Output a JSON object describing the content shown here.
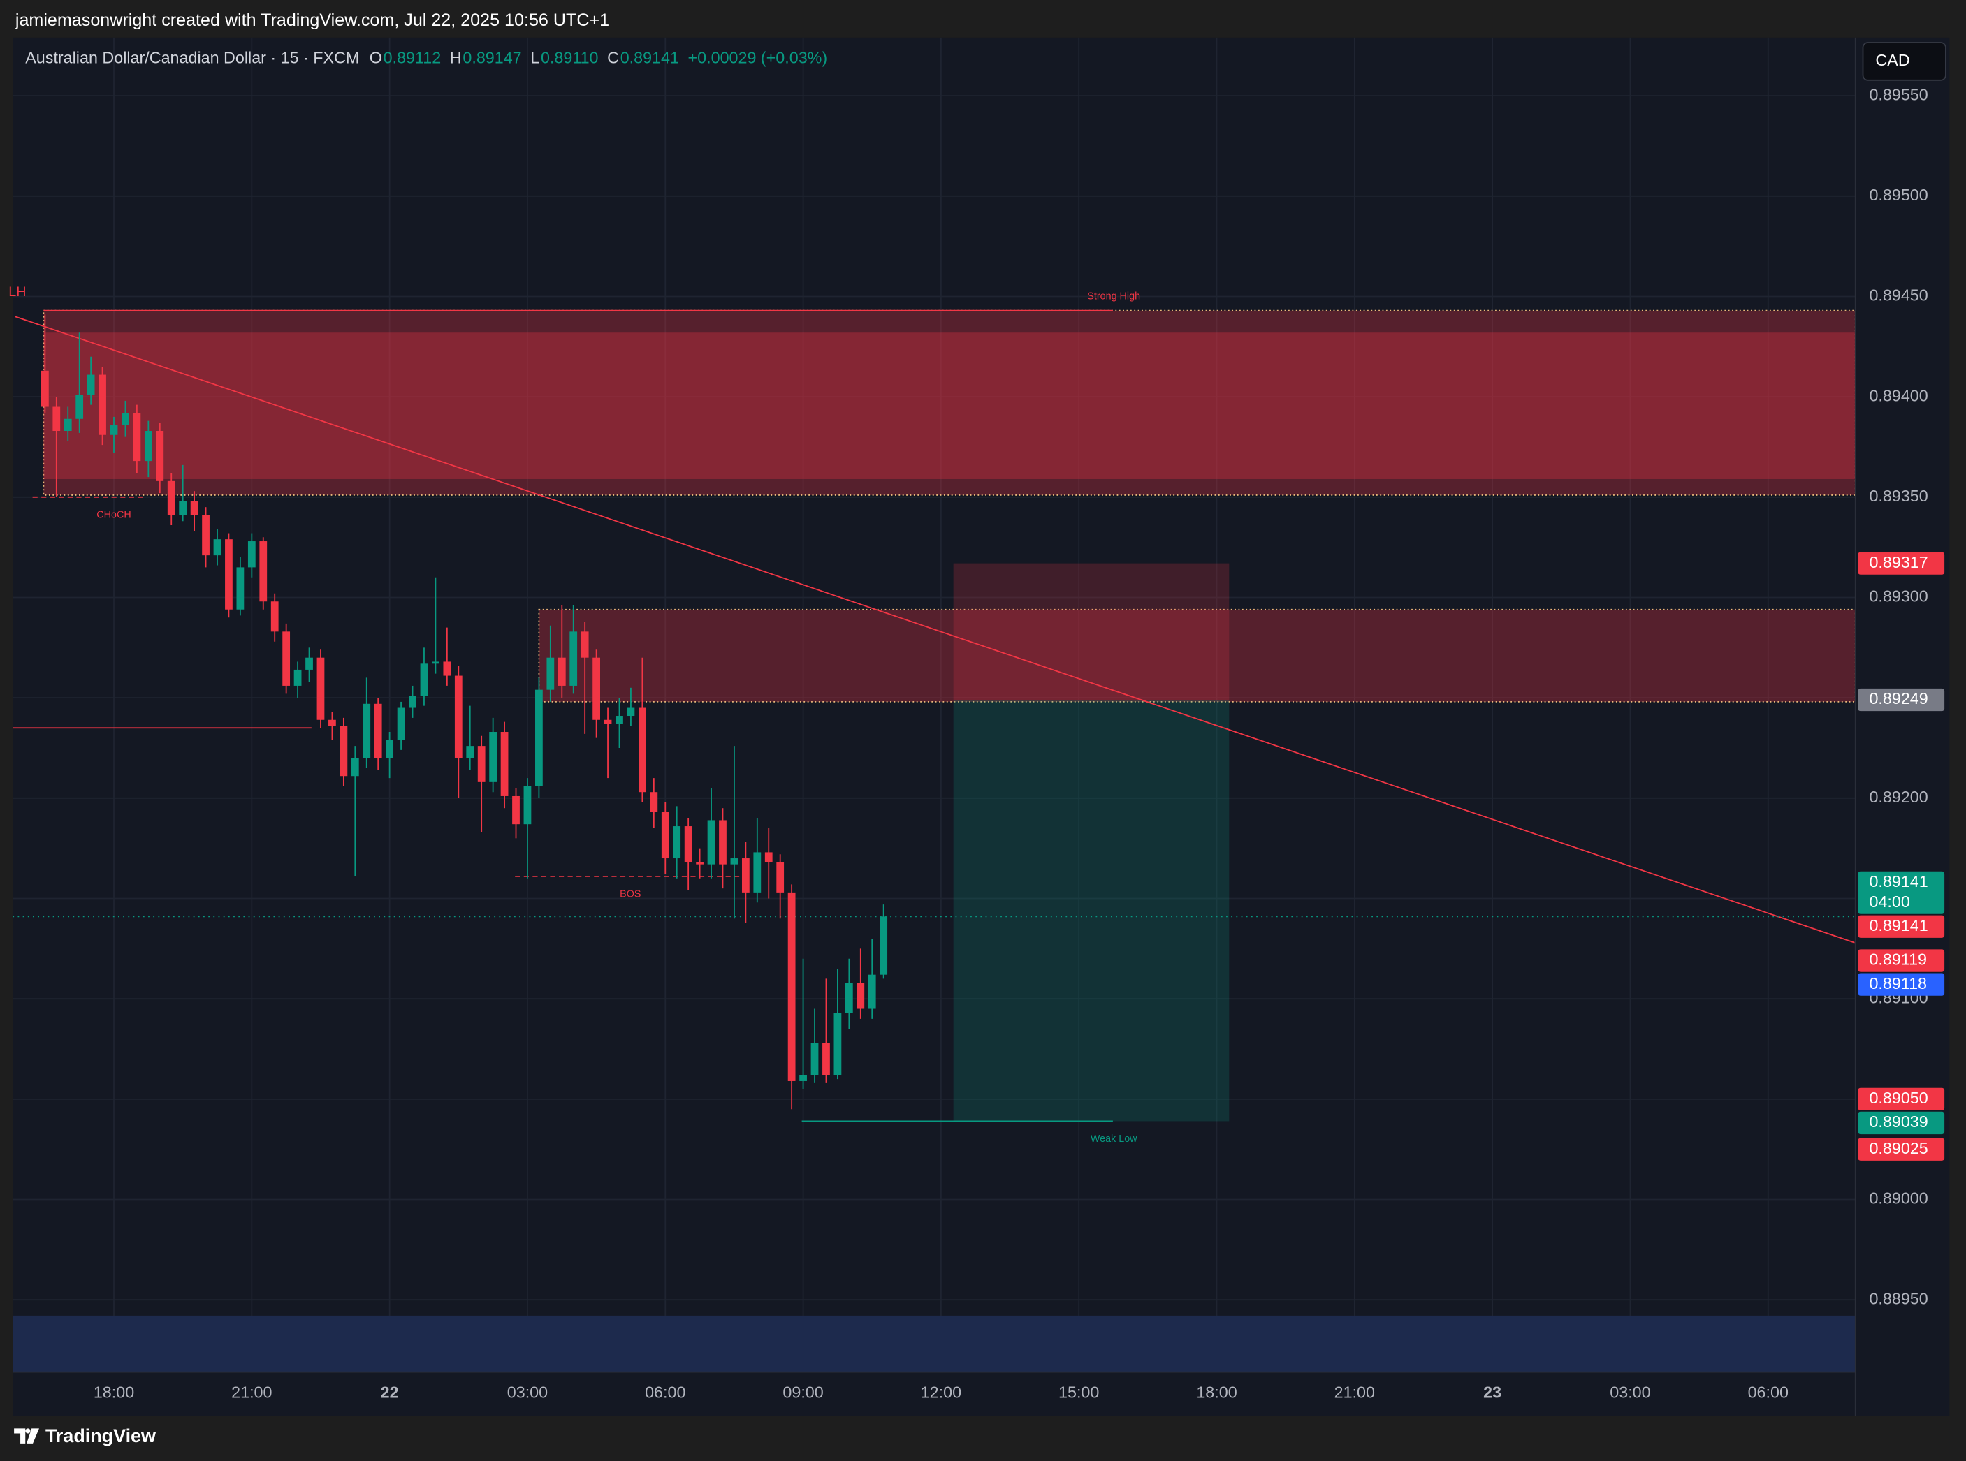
{
  "header": {
    "text": "jamiemasonwright created with TradingView.com, Jul 22, 2025 10:56 UTC+1"
  },
  "chart_data": {
    "type": "candlestick",
    "title": "Australian Dollar/Canadian Dollar · 15 · FXCM",
    "ohlc_legend": [
      {
        "key": "O",
        "value": "0.89112"
      },
      {
        "key": "H",
        "value": "0.89147"
      },
      {
        "key": "L",
        "value": "0.89110"
      },
      {
        "key": "C",
        "value": "0.89141"
      }
    ],
    "change": "+0.00029 (+0.03%)",
    "currency": "CAD",
    "up_color": "#089981",
    "down_color": "#f23645",
    "x": [
      16.5,
      16.75,
      17,
      17.25,
      17.5,
      17.75,
      18,
      18.25,
      18.5,
      18.75,
      19,
      19.25,
      19.5,
      19.75,
      20,
      20.25,
      20.5,
      20.75,
      21,
      21.25,
      21.5,
      21.75,
      22,
      22.25,
      22.5,
      22.75,
      23,
      23.25,
      23.5,
      23.75,
      24,
      24.25,
      24.5,
      24.75,
      25,
      25.25,
      25.5,
      25.75,
      26,
      26.25,
      26.5,
      26.75,
      27,
      27.25,
      27.5,
      27.75,
      28,
      28.25,
      28.5,
      28.75,
      29,
      29.25,
      29.5,
      29.75,
      30,
      30.25,
      30.5,
      30.75,
      31,
      31.25,
      31.5,
      31.75,
      32,
      32.25,
      32.5,
      32.75,
      33,
      33.25,
      33.5,
      33.75,
      34,
      34.25,
      34.5,
      34.75
    ],
    "open": [
      0.89413,
      0.89395,
      0.89383,
      0.89389,
      0.89401,
      0.89411,
      0.89381,
      0.89386,
      0.89392,
      0.89368,
      0.89383,
      0.89358,
      0.89341,
      0.89348,
      0.89341,
      0.89321,
      0.89329,
      0.89294,
      0.89315,
      0.89328,
      0.89298,
      0.89283,
      0.89256,
      0.89264,
      0.8927,
      0.89239,
      0.89236,
      0.89211,
      0.8922,
      0.89247,
      0.8922,
      0.89229,
      0.89245,
      0.89251,
      0.89267,
      0.89268,
      0.89261,
      0.8922,
      0.89226,
      0.89208,
      0.89233,
      0.89201,
      0.89187,
      0.89206,
      0.89254,
      0.8927,
      0.89256,
      0.89283,
      0.8927,
      0.89239,
      0.89237,
      0.89241,
      0.89245,
      0.89203,
      0.89193,
      0.8917,
      0.89186,
      0.89168,
      0.89167,
      0.89189,
      0.89167,
      0.8917,
      0.89153,
      0.89173,
      0.89168,
      0.89153,
      0.89059,
      0.89062,
      0.89078,
      0.89062,
      0.89093,
      0.89108,
      0.89095,
      0.89112
    ],
    "high": [
      0.89441,
      0.894,
      0.89395,
      0.89432,
      0.8942,
      0.89415,
      0.8939,
      0.89398,
      0.89396,
      0.89388,
      0.89387,
      0.89362,
      0.89366,
      0.89353,
      0.89345,
      0.89334,
      0.89332,
      0.8932,
      0.89332,
      0.8933,
      0.89302,
      0.89287,
      0.89268,
      0.89275,
      0.89274,
      0.89243,
      0.8924,
      0.89226,
      0.8926,
      0.8925,
      0.89233,
      0.89248,
      0.89256,
      0.89275,
      0.8931,
      0.89285,
      0.89266,
      0.89246,
      0.89231,
      0.8924,
      0.89238,
      0.89205,
      0.8921,
      0.8926,
      0.89286,
      0.89296,
      0.89296,
      0.89288,
      0.89274,
      0.89245,
      0.8925,
      0.89255,
      0.8927,
      0.8921,
      0.89198,
      0.89196,
      0.8919,
      0.89175,
      0.89205,
      0.89195,
      0.89226,
      0.89178,
      0.8919,
      0.89185,
      0.89172,
      0.89157,
      0.8912,
      0.89095,
      0.8911,
      0.89115,
      0.8912,
      0.89125,
      0.8913,
      0.89147
    ],
    "low": [
      0.89392,
      0.8935,
      0.89378,
      0.89382,
      0.89396,
      0.89376,
      0.89372,
      0.8938,
      0.89362,
      0.8936,
      0.89352,
      0.89336,
      0.89338,
      0.89333,
      0.89315,
      0.89316,
      0.8929,
      0.89291,
      0.8931,
      0.89294,
      0.89278,
      0.89252,
      0.8925,
      0.89258,
      0.89235,
      0.89229,
      0.89206,
      0.89161,
      0.89215,
      0.89214,
      0.8921,
      0.89224,
      0.8924,
      0.89246,
      0.89262,
      0.89256,
      0.892,
      0.89214,
      0.89183,
      0.89203,
      0.89195,
      0.8918,
      0.8916,
      0.892,
      0.89248,
      0.8925,
      0.89252,
      0.89232,
      0.8923,
      0.8921,
      0.89225,
      0.89236,
      0.89198,
      0.89185,
      0.89162,
      0.8916,
      0.89154,
      0.8916,
      0.8916,
      0.89155,
      0.8914,
      0.89138,
      0.89148,
      0.8915,
      0.8914,
      0.89045,
      0.89055,
      0.89058,
      0.89058,
      0.8906,
      0.89085,
      0.8909,
      0.8909,
      0.8911
    ],
    "close": [
      0.89395,
      0.89383,
      0.89389,
      0.89401,
      0.89411,
      0.89381,
      0.89386,
      0.89392,
      0.89368,
      0.89383,
      0.89358,
      0.89341,
      0.89348,
      0.89341,
      0.89321,
      0.89329,
      0.89294,
      0.89315,
      0.89328,
      0.89298,
      0.89283,
      0.89256,
      0.89264,
      0.8927,
      0.89239,
      0.89236,
      0.89211,
      0.8922,
      0.89247,
      0.8922,
      0.89229,
      0.89245,
      0.89251,
      0.89267,
      0.89268,
      0.89261,
      0.8922,
      0.89226,
      0.89208,
      0.89233,
      0.89201,
      0.89187,
      0.89206,
      0.89254,
      0.8927,
      0.89256,
      0.89283,
      0.8927,
      0.89239,
      0.89237,
      0.89241,
      0.89245,
      0.89203,
      0.89193,
      0.8917,
      0.89186,
      0.89168,
      0.89167,
      0.89189,
      0.89167,
      0.8917,
      0.89153,
      0.89173,
      0.89168,
      0.89153,
      0.89059,
      0.89062,
      0.89078,
      0.89062,
      0.89093,
      0.89108,
      0.89095,
      0.89112,
      0.89141
    ],
    "xlim": [
      15.8,
      55.9
    ],
    "xticks": [
      {
        "value": 18,
        "label": "18:00"
      },
      {
        "value": 21,
        "label": "21:00"
      },
      {
        "value": 24,
        "label": "22"
      },
      {
        "value": 27,
        "label": "03:00"
      },
      {
        "value": 30,
        "label": "06:00"
      },
      {
        "value": 33,
        "label": "09:00"
      },
      {
        "value": 36,
        "label": "12:00"
      },
      {
        "value": 39,
        "label": "15:00"
      },
      {
        "value": 42,
        "label": "18:00"
      },
      {
        "value": 45,
        "label": "21:00"
      },
      {
        "value": 48,
        "label": "23"
      },
      {
        "value": 51,
        "label": "03:00"
      },
      {
        "value": 54,
        "label": "06:00"
      }
    ],
    "ylim": [
      0.88914,
      0.89579
    ],
    "yticks": [
      {
        "value": 0.8955,
        "label": "0.89550"
      },
      {
        "value": 0.895,
        "label": "0.89500"
      },
      {
        "value": 0.8945,
        "label": "0.89450"
      },
      {
        "value": 0.894,
        "label": "0.89400"
      },
      {
        "value": 0.8935,
        "label": "0.89350"
      },
      {
        "value": 0.893,
        "label": "0.89300"
      },
      {
        "value": 0.8925,
        "label": "0.89250"
      },
      {
        "value": 0.892,
        "label": "0.89200"
      },
      {
        "value": 0.8915,
        "label": "0.89150"
      },
      {
        "value": 0.891,
        "label": "0.89100"
      },
      {
        "value": 0.8905,
        "label": "0.89050"
      },
      {
        "value": 0.89,
        "label": "0.89000"
      },
      {
        "value": 0.8895,
        "label": "0.88950"
      }
    ],
    "grid": true,
    "zones": [
      {
        "top": 0.89443,
        "bottom": 0.89351,
        "x0": 16.47,
        "color": "#f23645",
        "border": "#e8b87a"
      },
      {
        "top": 0.89432,
        "bottom": 0.89359,
        "x0": 16.47,
        "color": "#f23645"
      },
      {
        "top": 0.89294,
        "bottom": 0.89248,
        "x0": 27.25,
        "color": "#f23645",
        "border": "#e8b87a"
      }
    ],
    "position": {
      "stop": 0.89317,
      "entry": 0.89249,
      "target": 0.89039,
      "x0": 36.27,
      "x1": 42.27,
      "stop_color": "#f23645",
      "target_color": "#089981"
    },
    "lines": [
      {
        "x": [
          15.85,
          55.88
        ],
        "y": [
          0.8944,
          0.89128
        ],
        "color": "#f23645",
        "dash": false
      },
      {
        "x": [
          15.8,
          22.3
        ],
        "y": [
          0.89235,
          0.89235
        ],
        "color": "#f23645",
        "dash": false
      },
      {
        "x": [
          16.23,
          18.66
        ],
        "y": [
          0.8935,
          0.8935
        ],
        "color": "#f23645",
        "dash": true
      },
      {
        "x": [
          26.73,
          31.61
        ],
        "y": [
          0.89161,
          0.89161
        ],
        "color": "#f23645",
        "dash": true
      },
      {
        "x": [
          16.47,
          39.74
        ],
        "y": [
          0.89443,
          0.89443
        ],
        "color": "#f23645",
        "dash": false
      },
      {
        "x": [
          32.97,
          39.74
        ],
        "y": [
          0.89039,
          0.89039
        ],
        "color": "#089981",
        "dash": false
      }
    ],
    "annotations": [
      {
        "text": "LH",
        "x": 15.9,
        "y": 0.89452,
        "color": "#f23645"
      },
      {
        "text": "CHoCH",
        "x": 18.0,
        "y": 0.89341,
        "color": "#f23645"
      },
      {
        "text": "BOS",
        "x": 29.24,
        "y": 0.89152,
        "color": "#f23645"
      },
      {
        "text": "Strong High",
        "x": 39.76,
        "y": 0.8945,
        "color": "#f23645"
      },
      {
        "text": "Weak Low",
        "x": 39.76,
        "y": 0.8903,
        "color": "#089981"
      }
    ],
    "price_labels": [
      {
        "value": 0.89317,
        "label": "0.89317",
        "color": "#f23645"
      },
      {
        "value": 0.89249,
        "label": "0.89249",
        "color": "#787b86"
      },
      {
        "value": 0.89141,
        "label": "0.89141",
        "sub": "04:00",
        "color": "#089981"
      },
      {
        "value": 0.89141,
        "label": "0.89141",
        "color": "#f23645"
      },
      {
        "value": 0.89119,
        "label": "0.89119",
        "color": "#f23645"
      },
      {
        "value": 0.89118,
        "label": "0.89118",
        "color": "#2962ff"
      },
      {
        "value": 0.8905,
        "label": "0.89050",
        "color": "#f23645"
      },
      {
        "value": 0.89039,
        "label": "0.89039",
        "color": "#089981"
      },
      {
        "value": 0.89025,
        "label": "0.89025",
        "color": "#f23645"
      }
    ]
  },
  "footer": {
    "brand": "TradingView"
  }
}
